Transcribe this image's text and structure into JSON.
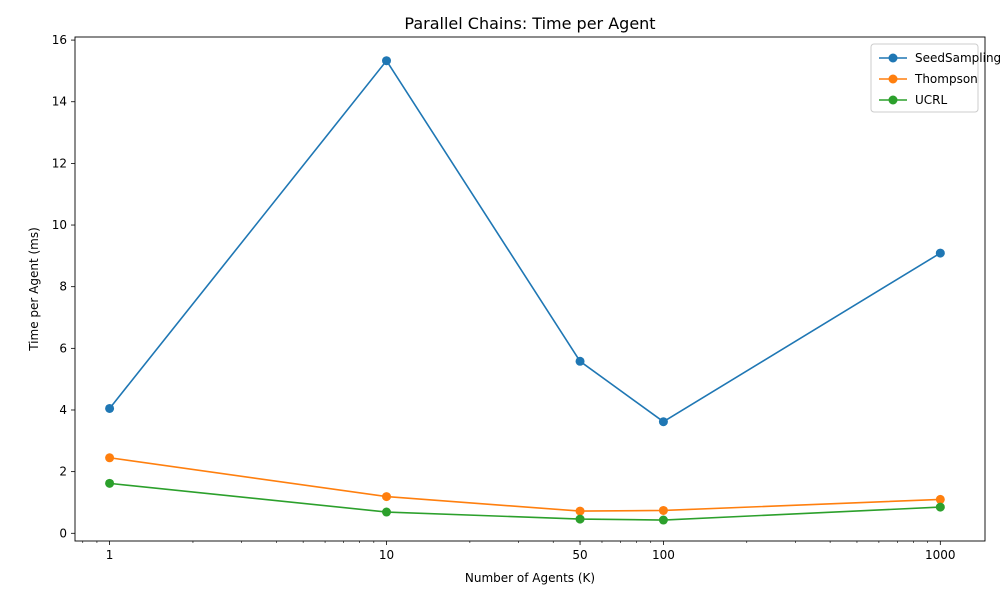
{
  "chart_data": {
    "type": "line",
    "title": "Parallel Chains: Time per Agent",
    "xlabel": "Number of Agents (K)",
    "ylabel": "Time per Agent (ms)",
    "x_scale": "log",
    "x": [
      1,
      10,
      50,
      100,
      1000
    ],
    "xlim": [
      0.75,
      1450
    ],
    "ylim": [
      -0.25,
      16.1
    ],
    "x_ticks": [
      {
        "value": 1,
        "label": "1"
      },
      {
        "value": 10,
        "label": "10"
      },
      {
        "value": 50,
        "label": "50"
      },
      {
        "value": 100,
        "label": "100"
      },
      {
        "value": 1000,
        "label": "1000"
      }
    ],
    "y_ticks": [
      {
        "value": 0,
        "label": "0"
      },
      {
        "value": 2,
        "label": "2"
      },
      {
        "value": 4,
        "label": "4"
      },
      {
        "value": 6,
        "label": "6"
      },
      {
        "value": 8,
        "label": "8"
      },
      {
        "value": 10,
        "label": "10"
      },
      {
        "value": 12,
        "label": "12"
      },
      {
        "value": 14,
        "label": "14"
      },
      {
        "value": 16,
        "label": "16"
      }
    ],
    "grid": false,
    "legend_position": "top-right",
    "series": [
      {
        "name": "SeedSampling",
        "color": "#1f77b4",
        "values": [
          4.05,
          15.33,
          5.58,
          3.62,
          9.09
        ]
      },
      {
        "name": "Thompson",
        "color": "#ff7f0e",
        "values": [
          2.45,
          1.19,
          0.72,
          0.74,
          1.1
        ]
      },
      {
        "name": "UCRL",
        "color": "#2ca02c",
        "values": [
          1.62,
          0.69,
          0.46,
          0.43,
          0.85
        ]
      }
    ]
  }
}
